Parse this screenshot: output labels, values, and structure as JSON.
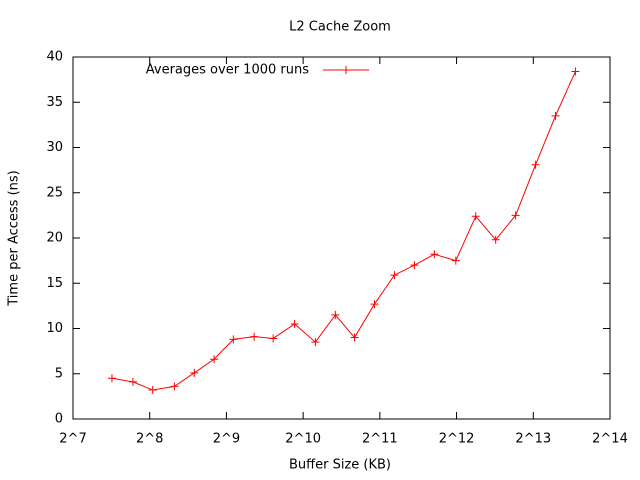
{
  "chart_data": {
    "type": "line",
    "title": "L2 Cache Zoom",
    "x_label": "Buffer Size (KB)",
    "y_label": "Time per Access (ns)",
    "x_scale": "log2",
    "x": [
      182,
      220,
      263,
      320,
      383,
      458,
      545,
      658,
      781,
      948,
      1144,
      1370,
      1629,
      1951,
      2336,
      2798,
      3350,
      4068,
      4870,
      5832,
      6983,
      8364,
      10015,
      11990
    ],
    "series": [
      {
        "name": "Averages over 1000 runs",
        "color": "#ff0000",
        "values": [
          4.5,
          4.1,
          3.2,
          3.6,
          5.1,
          6.6,
          8.8,
          9.1,
          8.9,
          10.5,
          8.5,
          11.5,
          9.0,
          12.7,
          15.9,
          17.0,
          18.2,
          17.5,
          22.4,
          19.8,
          22.5,
          28.1,
          33.5,
          38.4
        ]
      }
    ],
    "xlim": [
      128,
      16384
    ],
    "xticks": [
      {
        "value": 128,
        "label": "2^7"
      },
      {
        "value": 256,
        "label": "2^8"
      },
      {
        "value": 512,
        "label": "2^9"
      },
      {
        "value": 1024,
        "label": "2^10"
      },
      {
        "value": 2048,
        "label": "2^11"
      },
      {
        "value": 4096,
        "label": "2^12"
      },
      {
        "value": 8192,
        "label": "2^13"
      },
      {
        "value": 16384,
        "label": "2^14"
      }
    ],
    "ylim": [
      0,
      40
    ],
    "yticks": [
      0,
      5,
      10,
      15,
      20,
      25,
      30,
      35,
      40
    ],
    "legend": "top-left"
  }
}
